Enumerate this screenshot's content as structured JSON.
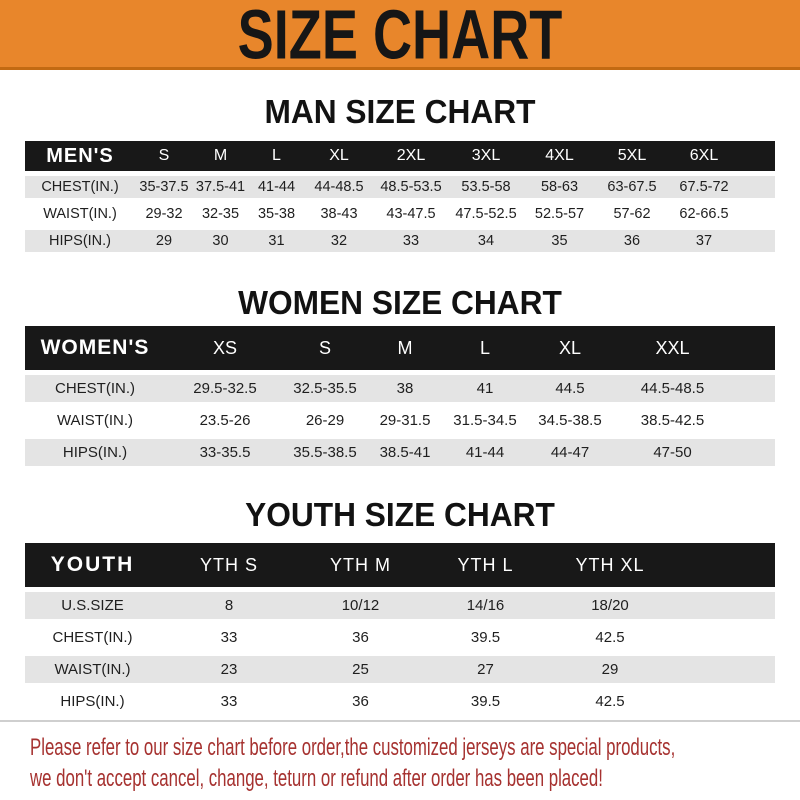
{
  "banner": {
    "title": "SIZE CHART"
  },
  "chart_data": [
    {
      "type": "table",
      "title": "MAN SIZE CHART",
      "header": [
        "MEN'S",
        "S",
        "M",
        "L",
        "XL",
        "2XL",
        "3XL",
        "4XL",
        "5XL",
        "6XL"
      ],
      "rows": [
        [
          "CHEST(IN.)",
          "35-37.5",
          "37.5-41",
          "41-44",
          "44-48.5",
          "48.5-53.5",
          "53.5-58",
          "58-63",
          "63-67.5",
          "67.5-72"
        ],
        [
          "WAIST(IN.)",
          "29-32",
          "32-35",
          "35-38",
          "38-43",
          "43-47.5",
          "47.5-52.5",
          "52.5-57",
          "57-62",
          "62-66.5"
        ],
        [
          "HIPS(IN.)",
          "29",
          "30",
          "31",
          "32",
          "33",
          "34",
          "35",
          "36",
          "37"
        ]
      ]
    },
    {
      "type": "table",
      "title": "WOMEN SIZE CHART",
      "header": [
        "WOMEN'S",
        "XS",
        "S",
        "M",
        "L",
        "XL",
        "XXL"
      ],
      "rows": [
        [
          "CHEST(IN.)",
          "29.5-32.5",
          "32.5-35.5",
          "38",
          "41",
          "44.5",
          "44.5-48.5"
        ],
        [
          "WAIST(IN.)",
          "23.5-26",
          "26-29",
          "29-31.5",
          "31.5-34.5",
          "34.5-38.5",
          "38.5-42.5"
        ],
        [
          "HIPS(IN.)",
          "33-35.5",
          "35.5-38.5",
          "38.5-41",
          "41-44",
          "44-47",
          "47-50"
        ]
      ]
    },
    {
      "type": "table",
      "title": "YOUTH SIZE CHART",
      "header": [
        "YOUTH",
        "YTH S",
        "YTH M",
        "YTH L",
        "YTH XL"
      ],
      "rows": [
        [
          "U.S.SIZE",
          "8",
          "10/12",
          "14/16",
          "18/20"
        ],
        [
          "CHEST(IN.)",
          "33",
          "36",
          "39.5",
          "42.5"
        ],
        [
          "WAIST(IN.)",
          "23",
          "25",
          "27",
          "29"
        ],
        [
          "HIPS(IN.)",
          "33",
          "36",
          "39.5",
          "42.5"
        ]
      ]
    }
  ],
  "footer": {
    "line1": "Please refer to our size chart before order,the customized jerseys are special products,",
    "line2": "we don't accept cancel, change, teturn or refund after order has been placed!"
  },
  "colors": {
    "banner_bg": "#E8862B",
    "banner_edge": "#C26A12",
    "banner_text": "#161616",
    "header_bar": "#181818",
    "row_alt": "#E4E4E4",
    "notice_red": "#A63230"
  }
}
